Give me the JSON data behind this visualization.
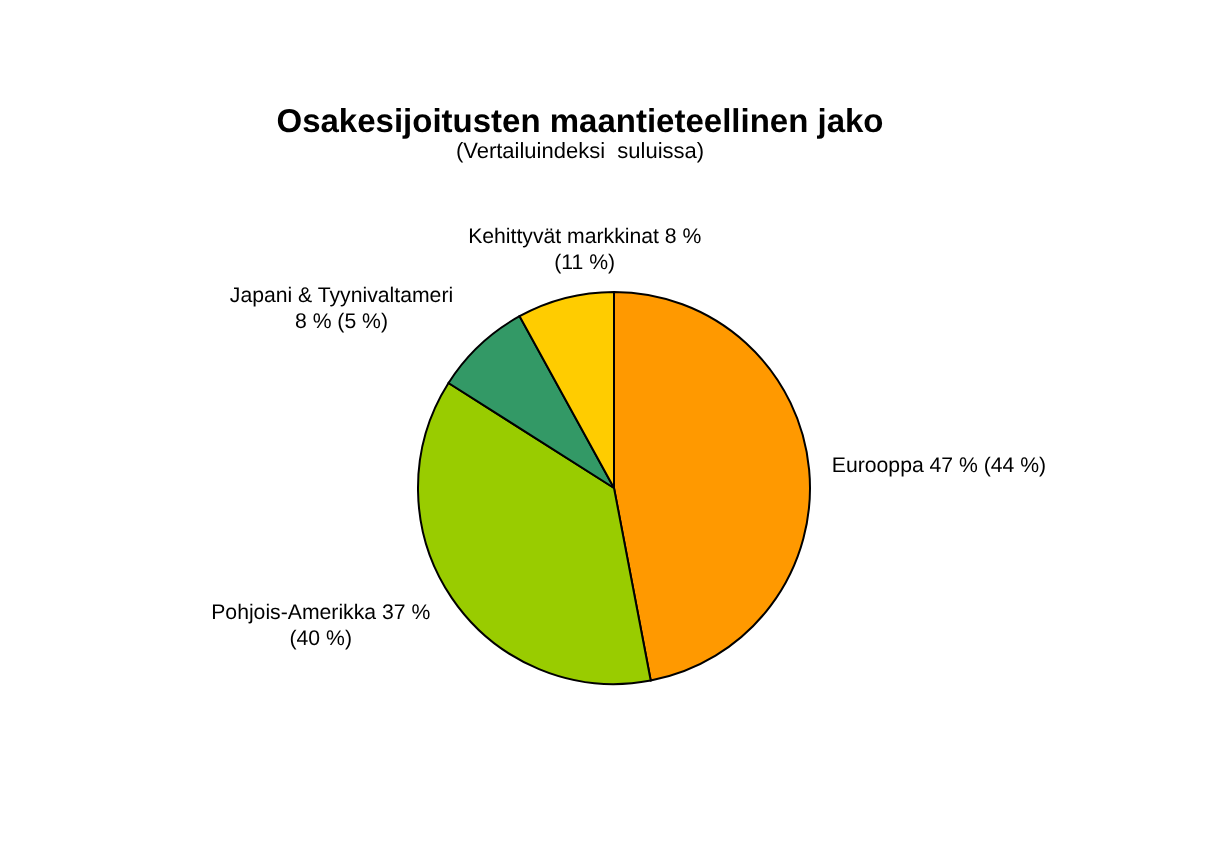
{
  "chart_data": {
    "type": "pie",
    "title": "Osakesijoitusten maantieteellinen jako",
    "subtitle": "(Vertailuindeksi  suluissa)",
    "categories": [
      "Eurooppa",
      "Pohjois-Amerikka",
      "Japani & Tyynivaltameri",
      "Kehittyvät markkinat"
    ],
    "values": [
      47,
      37,
      8,
      8
    ],
    "colors": [
      "#ff9900",
      "#99cc00",
      "#339966",
      "#ffcc00"
    ],
    "value_labels": [
      "47 % (44 %)",
      "37 %\n(40 %)",
      "\n8 % (5 %)",
      "8 %\n(11 %)"
    ]
  }
}
